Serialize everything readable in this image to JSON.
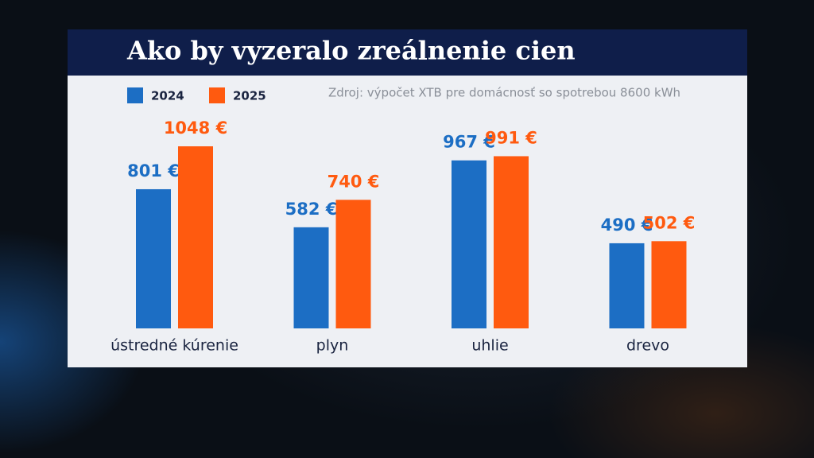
{
  "chart_data": {
    "type": "bar",
    "title": "Ako by vyzeralo zreálnenie cien",
    "subtitle": "Zdroj: výpočet XTB pre domácnosť so spotrebou 8600 kWh",
    "categories": [
      "ústredné kúrenie",
      "plyn",
      "uhlie",
      "drevo"
    ],
    "series": [
      {
        "name": "2024",
        "color": "#1c6ec4",
        "values": [
          801,
          582,
          967,
          490
        ],
        "value_labels": [
          "801 €",
          "582 €",
          "967 €",
          "490 €"
        ]
      },
      {
        "name": "2025",
        "color": "#ff5a0f",
        "values": [
          1048,
          740,
          991,
          502
        ],
        "value_labels": [
          "1048 €",
          "740 €",
          "991 €",
          "502 €"
        ]
      }
    ]
  }
}
